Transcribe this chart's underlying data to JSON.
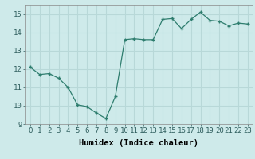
{
  "x": [
    0,
    1,
    2,
    3,
    4,
    5,
    6,
    7,
    8,
    9,
    10,
    11,
    12,
    13,
    14,
    15,
    16,
    17,
    18,
    19,
    20,
    21,
    22,
    23
  ],
  "y": [
    12.1,
    11.7,
    11.75,
    11.5,
    11.0,
    10.05,
    9.95,
    9.6,
    9.3,
    10.5,
    13.6,
    13.65,
    13.6,
    13.6,
    14.7,
    14.75,
    14.2,
    14.7,
    15.1,
    14.65,
    14.6,
    14.35,
    14.5,
    14.45
  ],
  "xlabel": "Humidex (Indice chaleur)",
  "ylim": [
    9,
    15.5
  ],
  "xlim": [
    -0.5,
    23.5
  ],
  "yticks": [
    9,
    10,
    11,
    12,
    13,
    14,
    15
  ],
  "xticks": [
    0,
    1,
    2,
    3,
    4,
    5,
    6,
    7,
    8,
    9,
    10,
    11,
    12,
    13,
    14,
    15,
    16,
    17,
    18,
    19,
    20,
    21,
    22,
    23
  ],
  "line_color": "#2e7d6e",
  "marker": "+",
  "bg_color": "#ceeaea",
  "grid_color": "#b8d8d8",
  "tick_label_fontsize": 6.5,
  "xlabel_fontsize": 7.5
}
